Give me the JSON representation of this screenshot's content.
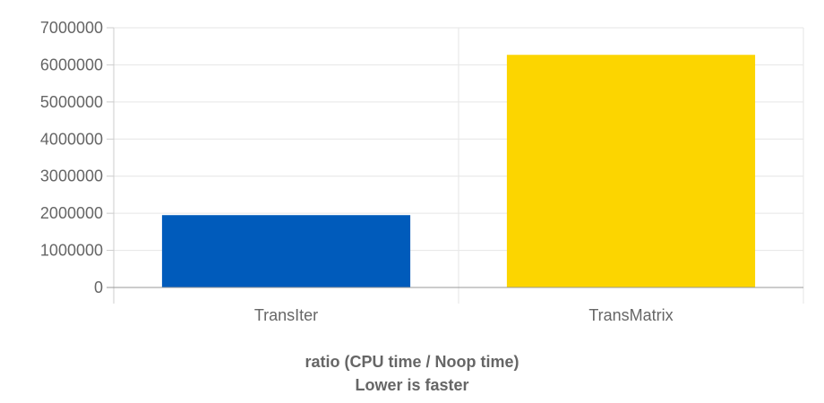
{
  "chart_data": {
    "type": "bar",
    "categories": [
      "TransIter",
      "TransMatrix"
    ],
    "values": [
      1950000,
      6270000
    ],
    "colors": [
      "#005bbb",
      "#fcd500"
    ],
    "ylim": [
      0,
      7000000
    ],
    "yticks": [
      "0",
      "1000000",
      "2000000",
      "3000000",
      "4000000",
      "5000000",
      "6000000",
      "7000000"
    ],
    "grid": true,
    "xlabel": "ratio (CPU time / Noop time)",
    "note": "Lower is faster"
  }
}
